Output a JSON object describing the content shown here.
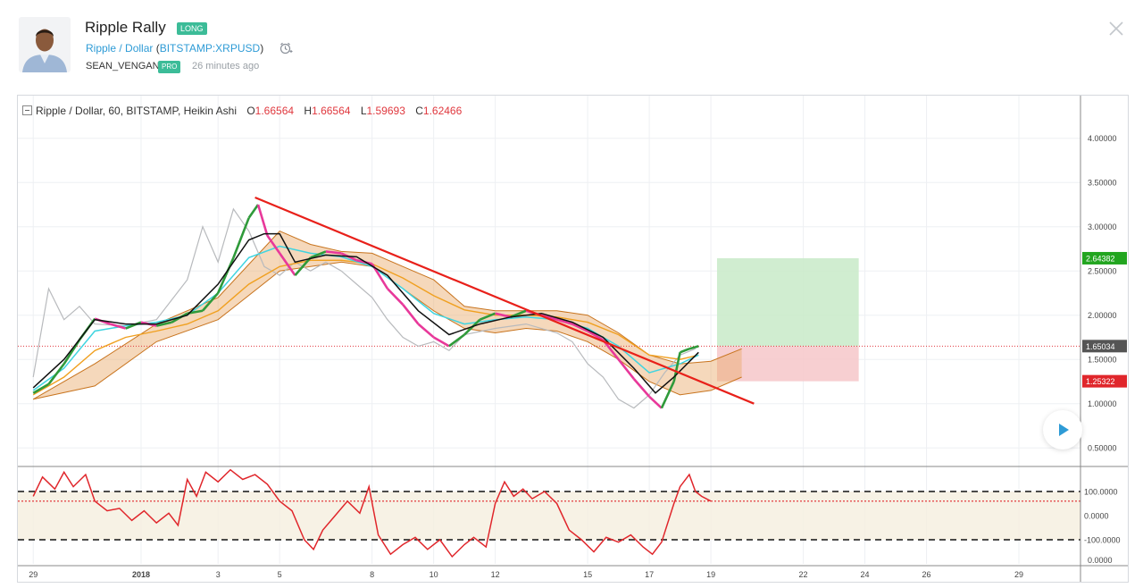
{
  "idea": {
    "title": "Ripple Rally",
    "direction_badge": "LONG",
    "symbol_name": "Ripple / Dollar",
    "symbol_open": " (",
    "symbol_ticker": "BITSTAMP:XRPUSD",
    "symbol_close": ")",
    "author": "SEAN_VENGAN",
    "author_badge": "PRO",
    "time_ago": "26 minutes ago"
  },
  "icons": {
    "alarm": "alarm-clock-icon",
    "close": "close-icon",
    "play": "play-icon",
    "collapse": "collapse-icon"
  },
  "legend": {
    "title": "Ripple / Dollar, 60, BITSTAMP, Heikin Ashi",
    "o_label": "O",
    "o_value": "1.66564",
    "h_label": "H",
    "h_value": "1.66564",
    "l_label": "L",
    "l_value": "1.59693",
    "c_label": "C",
    "c_value": "1.62466"
  },
  "colors": {
    "brand_green": "#3cbc98",
    "link_blue": "#2e9bd6",
    "bear_red": "#e0383e",
    "trendline": "#e8201a",
    "profit_zone": "#c8eac8",
    "loss_zone": "#f6c7c9",
    "price_tag_green": "#22a51f",
    "price_tag_red": "#e0262b",
    "price_tag_gray": "#555555"
  },
  "chart_data": {
    "type": "line",
    "title": "Ripple / Dollar, 60, BITSTAMP, Heikin Ashi",
    "price_axis": {
      "ylim": [
        0.3,
        4.3
      ],
      "ticks": [
        4.0,
        3.5,
        3.0,
        2.5,
        2.0,
        1.5,
        1.0,
        0.5
      ],
      "tick_labels": [
        "4.00000",
        "3.50000",
        "3.00000",
        "2.50000",
        "2.00000",
        "1.50000",
        "1.00000",
        "0.50000"
      ]
    },
    "x_axis": {
      "tick_labels": [
        "29",
        "2018",
        "3",
        "5",
        "8",
        "10",
        "12",
        "15",
        "17",
        "19",
        "22",
        "24",
        "26",
        "29"
      ],
      "tick_pos": [
        0,
        3.5,
        6,
        8,
        11,
        13,
        15,
        18,
        20,
        22,
        25,
        27,
        29,
        32
      ],
      "xlim": [
        -0.5,
        34
      ],
      "last_data_x": 21.6
    },
    "price_series": [
      {
        "x": 0,
        "y": 1.12
      },
      {
        "x": 0.5,
        "y": 1.22
      },
      {
        "x": 1,
        "y": 1.45
      },
      {
        "x": 1.5,
        "y": 1.72
      },
      {
        "x": 2,
        "y": 1.96
      },
      {
        "x": 2.5,
        "y": 1.9
      },
      {
        "x": 3,
        "y": 1.85
      },
      {
        "x": 3.5,
        "y": 1.92
      },
      {
        "x": 4,
        "y": 1.88
      },
      {
        "x": 4.5,
        "y": 1.92
      },
      {
        "x": 5,
        "y": 2.02
      },
      {
        "x": 5.5,
        "y": 2.05
      },
      {
        "x": 6,
        "y": 2.25
      },
      {
        "x": 6.5,
        "y": 2.65
      },
      {
        "x": 7,
        "y": 3.1
      },
      {
        "x": 7.3,
        "y": 3.25
      },
      {
        "x": 7.6,
        "y": 2.9
      },
      {
        "x": 8,
        "y": 2.7
      },
      {
        "x": 8.5,
        "y": 2.45
      },
      {
        "x": 9,
        "y": 2.65
      },
      {
        "x": 9.5,
        "y": 2.72
      },
      {
        "x": 10,
        "y": 2.7
      },
      {
        "x": 10.5,
        "y": 2.62
      },
      {
        "x": 11,
        "y": 2.58
      },
      {
        "x": 11.5,
        "y": 2.3
      },
      {
        "x": 12,
        "y": 2.12
      },
      {
        "x": 12.5,
        "y": 1.9
      },
      {
        "x": 13,
        "y": 1.75
      },
      {
        "x": 13.5,
        "y": 1.65
      },
      {
        "x": 14,
        "y": 1.78
      },
      {
        "x": 14.5,
        "y": 1.95
      },
      {
        "x": 15,
        "y": 2.02
      },
      {
        "x": 15.5,
        "y": 1.98
      },
      {
        "x": 16,
        "y": 2.05
      },
      {
        "x": 16.5,
        "y": 2.0
      },
      {
        "x": 17,
        "y": 1.95
      },
      {
        "x": 17.5,
        "y": 1.9
      },
      {
        "x": 18,
        "y": 1.82
      },
      {
        "x": 18.5,
        "y": 1.72
      },
      {
        "x": 19,
        "y": 1.5
      },
      {
        "x": 19.5,
        "y": 1.28
      },
      {
        "x": 20,
        "y": 1.08
      },
      {
        "x": 20.4,
        "y": 0.95
      },
      {
        "x": 20.8,
        "y": 1.25
      },
      {
        "x": 21,
        "y": 1.58
      },
      {
        "x": 21.3,
        "y": 1.62
      },
      {
        "x": 21.6,
        "y": 1.65
      }
    ],
    "comparison_series": [
      {
        "x": 0,
        "y": 1.3
      },
      {
        "x": 0.5,
        "y": 2.3
      },
      {
        "x": 1,
        "y": 1.95
      },
      {
        "x": 1.5,
        "y": 2.1
      },
      {
        "x": 2,
        "y": 1.9
      },
      {
        "x": 3,
        "y": 1.88
      },
      {
        "x": 4,
        "y": 1.95
      },
      {
        "x": 5,
        "y": 2.4
      },
      {
        "x": 5.5,
        "y": 3.0
      },
      {
        "x": 6,
        "y": 2.6
      },
      {
        "x": 6.5,
        "y": 3.2
      },
      {
        "x": 7,
        "y": 2.95
      },
      {
        "x": 7.5,
        "y": 2.55
      },
      {
        "x": 8,
        "y": 2.45
      },
      {
        "x": 8.5,
        "y": 2.6
      },
      {
        "x": 9,
        "y": 2.5
      },
      {
        "x": 9.5,
        "y": 2.6
      },
      {
        "x": 10,
        "y": 2.5
      },
      {
        "x": 10.5,
        "y": 2.35
      },
      {
        "x": 11,
        "y": 2.2
      },
      {
        "x": 11.5,
        "y": 1.95
      },
      {
        "x": 12,
        "y": 1.75
      },
      {
        "x": 12.5,
        "y": 1.65
      },
      {
        "x": 13,
        "y": 1.7
      },
      {
        "x": 13.5,
        "y": 1.6
      },
      {
        "x": 14,
        "y": 1.78
      },
      {
        "x": 15,
        "y": 1.85
      },
      {
        "x": 16,
        "y": 1.9
      },
      {
        "x": 17,
        "y": 1.8
      },
      {
        "x": 17.5,
        "y": 1.7
      },
      {
        "x": 18,
        "y": 1.45
      },
      {
        "x": 18.5,
        "y": 1.3
      },
      {
        "x": 19,
        "y": 1.05
      },
      {
        "x": 19.5,
        "y": 0.95
      },
      {
        "x": 20,
        "y": 1.1
      },
      {
        "x": 20.5,
        "y": 1.35
      },
      {
        "x": 21,
        "y": 1.55
      },
      {
        "x": 21.5,
        "y": 1.62
      }
    ],
    "ma_fast_black": [
      {
        "x": 0,
        "y": 1.18
      },
      {
        "x": 1,
        "y": 1.5
      },
      {
        "x": 2,
        "y": 1.95
      },
      {
        "x": 3,
        "y": 1.9
      },
      {
        "x": 4,
        "y": 1.9
      },
      {
        "x": 5,
        "y": 2.0
      },
      {
        "x": 6,
        "y": 2.35
      },
      {
        "x": 7,
        "y": 2.85
      },
      {
        "x": 7.5,
        "y": 2.92
      },
      {
        "x": 8,
        "y": 2.92
      },
      {
        "x": 8.5,
        "y": 2.6
      },
      {
        "x": 9.5,
        "y": 2.68
      },
      {
        "x": 10.5,
        "y": 2.66
      },
      {
        "x": 11.5,
        "y": 2.45
      },
      {
        "x": 12.5,
        "y": 2.05
      },
      {
        "x": 13.5,
        "y": 1.78
      },
      {
        "x": 14.5,
        "y": 1.9
      },
      {
        "x": 15.5,
        "y": 1.98
      },
      {
        "x": 16.5,
        "y": 2.02
      },
      {
        "x": 17.5,
        "y": 1.92
      },
      {
        "x": 18.5,
        "y": 1.75
      },
      {
        "x": 19.5,
        "y": 1.4
      },
      {
        "x": 20.2,
        "y": 1.12
      },
      {
        "x": 20.8,
        "y": 1.3
      },
      {
        "x": 21.6,
        "y": 1.58
      }
    ],
    "ma_cyan": [
      {
        "x": 0,
        "y": 1.15
      },
      {
        "x": 1,
        "y": 1.4
      },
      {
        "x": 2,
        "y": 1.82
      },
      {
        "x": 3,
        "y": 1.88
      },
      {
        "x": 4,
        "y": 1.92
      },
      {
        "x": 5,
        "y": 2.0
      },
      {
        "x": 6,
        "y": 2.25
      },
      {
        "x": 7,
        "y": 2.65
      },
      {
        "x": 8,
        "y": 2.78
      },
      {
        "x": 9,
        "y": 2.7
      },
      {
        "x": 10,
        "y": 2.66
      },
      {
        "x": 11,
        "y": 2.55
      },
      {
        "x": 12,
        "y": 2.3
      },
      {
        "x": 13,
        "y": 2.02
      },
      {
        "x": 14,
        "y": 1.9
      },
      {
        "x": 15,
        "y": 1.95
      },
      {
        "x": 16,
        "y": 1.98
      },
      {
        "x": 17,
        "y": 1.95
      },
      {
        "x": 18,
        "y": 1.85
      },
      {
        "x": 19,
        "y": 1.65
      },
      {
        "x": 20,
        "y": 1.35
      },
      {
        "x": 21,
        "y": 1.45
      },
      {
        "x": 21.6,
        "y": 1.55
      }
    ],
    "ma_orange": [
      {
        "x": 0,
        "y": 1.1
      },
      {
        "x": 1,
        "y": 1.3
      },
      {
        "x": 2,
        "y": 1.6
      },
      {
        "x": 3,
        "y": 1.75
      },
      {
        "x": 4,
        "y": 1.82
      },
      {
        "x": 5,
        "y": 1.9
      },
      {
        "x": 6,
        "y": 2.05
      },
      {
        "x": 7,
        "y": 2.35
      },
      {
        "x": 8,
        "y": 2.55
      },
      {
        "x": 9,
        "y": 2.62
      },
      {
        "x": 10,
        "y": 2.62
      },
      {
        "x": 11,
        "y": 2.58
      },
      {
        "x": 12,
        "y": 2.42
      },
      {
        "x": 13,
        "y": 2.22
      },
      {
        "x": 14,
        "y": 2.06
      },
      {
        "x": 15,
        "y": 2.0
      },
      {
        "x": 16,
        "y": 2.0
      },
      {
        "x": 17,
        "y": 1.98
      },
      {
        "x": 18,
        "y": 1.92
      },
      {
        "x": 19,
        "y": 1.78
      },
      {
        "x": 20,
        "y": 1.55
      },
      {
        "x": 21,
        "y": 1.5
      },
      {
        "x": 21.6,
        "y": 1.55
      }
    ],
    "cloud_upper": [
      {
        "x": 0,
        "y": 1.05
      },
      {
        "x": 2,
        "y": 1.45
      },
      {
        "x": 4,
        "y": 1.9
      },
      {
        "x": 6,
        "y": 2.2
      },
      {
        "x": 8,
        "y": 2.95
      },
      {
        "x": 9,
        "y": 2.8
      },
      {
        "x": 10,
        "y": 2.72
      },
      {
        "x": 11,
        "y": 2.7
      },
      {
        "x": 12,
        "y": 2.55
      },
      {
        "x": 13,
        "y": 2.4
      },
      {
        "x": 14,
        "y": 2.1
      },
      {
        "x": 15,
        "y": 2.05
      },
      {
        "x": 16,
        "y": 2.05
      },
      {
        "x": 17,
        "y": 2.05
      },
      {
        "x": 18,
        "y": 2.0
      },
      {
        "x": 19,
        "y": 1.8
      },
      {
        "x": 20,
        "y": 1.55
      },
      {
        "x": 21,
        "y": 1.45
      },
      {
        "x": 22,
        "y": 1.48
      },
      {
        "x": 23,
        "y": 1.62
      }
    ],
    "cloud_lower": [
      {
        "x": 0,
        "y": 1.05
      },
      {
        "x": 2,
        "y": 1.2
      },
      {
        "x": 4,
        "y": 1.7
      },
      {
        "x": 6,
        "y": 1.95
      },
      {
        "x": 8,
        "y": 2.5
      },
      {
        "x": 9,
        "y": 2.55
      },
      {
        "x": 10,
        "y": 2.6
      },
      {
        "x": 11,
        "y": 2.55
      },
      {
        "x": 12,
        "y": 2.3
      },
      {
        "x": 13,
        "y": 2.05
      },
      {
        "x": 14,
        "y": 1.85
      },
      {
        "x": 15,
        "y": 1.8
      },
      {
        "x": 16,
        "y": 1.85
      },
      {
        "x": 17,
        "y": 1.82
      },
      {
        "x": 18,
        "y": 1.7
      },
      {
        "x": 19,
        "y": 1.5
      },
      {
        "x": 20,
        "y": 1.25
      },
      {
        "x": 21,
        "y": 1.1
      },
      {
        "x": 22,
        "y": 1.15
      },
      {
        "x": 23,
        "y": 1.3
      }
    ],
    "trendline": {
      "x1": 7.2,
      "y1": 3.33,
      "x2": 23.4,
      "y2": 1.0
    },
    "current_price_line": 1.65034,
    "position": {
      "x_start": 22.2,
      "x_end": 26.8,
      "entry": 1.65034,
      "target": 2.64382,
      "stop": 1.25322
    },
    "price_tags": [
      {
        "value": "2.64382",
        "price": 2.64382,
        "color": "#22a51f"
      },
      {
        "value": "1.65034",
        "price": 1.65034,
        "color": "#555555"
      },
      {
        "value": "1.25322",
        "price": 1.25322,
        "color": "#e0262b"
      }
    ],
    "oscillator": {
      "ylim": [
        -200,
        200
      ],
      "ticks": [
        100,
        0,
        -100
      ],
      "tick_labels": [
        "100.0000",
        "0.0000",
        "-100.0000"
      ],
      "upper_band": 100,
      "lower_band": -100,
      "signal_level": 60,
      "values": [
        {
          "x": 0,
          "y": 80
        },
        {
          "x": 0.3,
          "y": 160
        },
        {
          "x": 0.7,
          "y": 110
        },
        {
          "x": 1,
          "y": 180
        },
        {
          "x": 1.3,
          "y": 120
        },
        {
          "x": 1.7,
          "y": 170
        },
        {
          "x": 2,
          "y": 60
        },
        {
          "x": 2.4,
          "y": 20
        },
        {
          "x": 2.8,
          "y": 30
        },
        {
          "x": 3.2,
          "y": -20
        },
        {
          "x": 3.6,
          "y": 20
        },
        {
          "x": 4,
          "y": -30
        },
        {
          "x": 4.4,
          "y": 10
        },
        {
          "x": 4.7,
          "y": -40
        },
        {
          "x": 5,
          "y": 150
        },
        {
          "x": 5.3,
          "y": 80
        },
        {
          "x": 5.6,
          "y": 180
        },
        {
          "x": 6,
          "y": 140
        },
        {
          "x": 6.4,
          "y": 190
        },
        {
          "x": 6.8,
          "y": 150
        },
        {
          "x": 7.2,
          "y": 170
        },
        {
          "x": 7.6,
          "y": 130
        },
        {
          "x": 8,
          "y": 60
        },
        {
          "x": 8.4,
          "y": 20
        },
        {
          "x": 8.8,
          "y": -100
        },
        {
          "x": 9.1,
          "y": -140
        },
        {
          "x": 9.4,
          "y": -60
        },
        {
          "x": 9.8,
          "y": 0
        },
        {
          "x": 10.2,
          "y": 60
        },
        {
          "x": 10.6,
          "y": 10
        },
        {
          "x": 10.9,
          "y": 120
        },
        {
          "x": 11.2,
          "y": -80
        },
        {
          "x": 11.6,
          "y": -160
        },
        {
          "x": 12,
          "y": -120
        },
        {
          "x": 12.4,
          "y": -90
        },
        {
          "x": 12.8,
          "y": -140
        },
        {
          "x": 13.2,
          "y": -100
        },
        {
          "x": 13.6,
          "y": -170
        },
        {
          "x": 14,
          "y": -120
        },
        {
          "x": 14.3,
          "y": -90
        },
        {
          "x": 14.7,
          "y": -130
        },
        {
          "x": 15,
          "y": 50
        },
        {
          "x": 15.3,
          "y": 140
        },
        {
          "x": 15.6,
          "y": 80
        },
        {
          "x": 15.9,
          "y": 110
        },
        {
          "x": 16.2,
          "y": 70
        },
        {
          "x": 16.6,
          "y": 100
        },
        {
          "x": 17,
          "y": 50
        },
        {
          "x": 17.4,
          "y": -60
        },
        {
          "x": 17.8,
          "y": -100
        },
        {
          "x": 18.2,
          "y": -150
        },
        {
          "x": 18.6,
          "y": -90
        },
        {
          "x": 19,
          "y": -110
        },
        {
          "x": 19.4,
          "y": -80
        },
        {
          "x": 19.8,
          "y": -130
        },
        {
          "x": 20.1,
          "y": -160
        },
        {
          "x": 20.4,
          "y": -110
        },
        {
          "x": 20.8,
          "y": 50
        },
        {
          "x": 21,
          "y": 120
        },
        {
          "x": 21.3,
          "y": 170
        },
        {
          "x": 21.5,
          "y": 100
        },
        {
          "x": 21.7,
          "y": 80
        },
        {
          "x": 22,
          "y": 60
        }
      ]
    }
  }
}
